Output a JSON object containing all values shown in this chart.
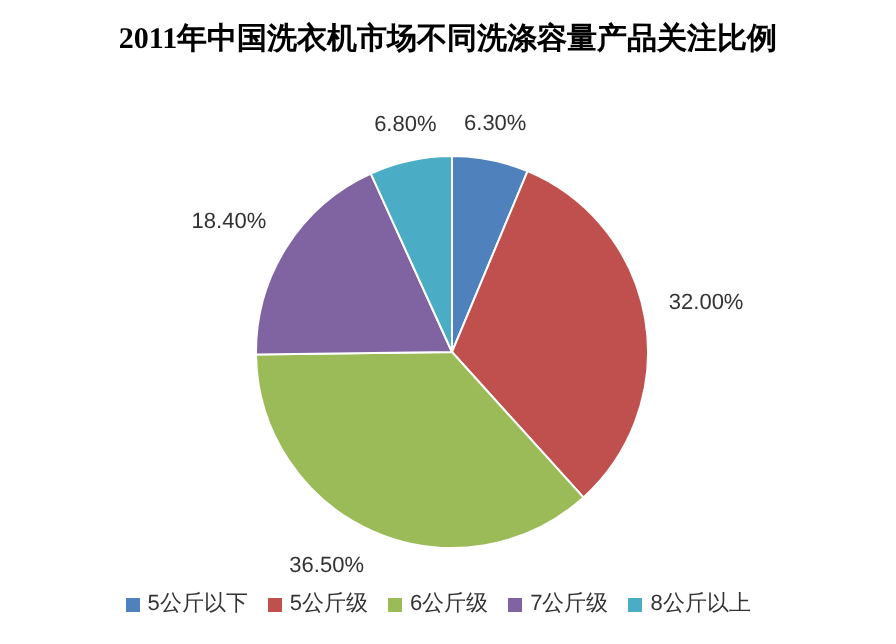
{
  "chart_data": {
    "type": "pie",
    "title": "2011年中国洗衣机市场不同洗涤容量产品关注比例",
    "categories": [
      "5公斤以下",
      "5公斤级",
      "6公斤级",
      "7公斤级",
      "8公斤以上"
    ],
    "values": [
      6.3,
      32.0,
      36.5,
      18.4,
      6.8
    ],
    "value_labels": [
      "6.30%",
      "32.00%",
      "36.50%",
      "18.40%",
      "6.80%"
    ],
    "colors": [
      "#4f81bd",
      "#c0504d",
      "#9bbb59",
      "#8064a2",
      "#4bacc6"
    ],
    "legend": "bottom"
  }
}
